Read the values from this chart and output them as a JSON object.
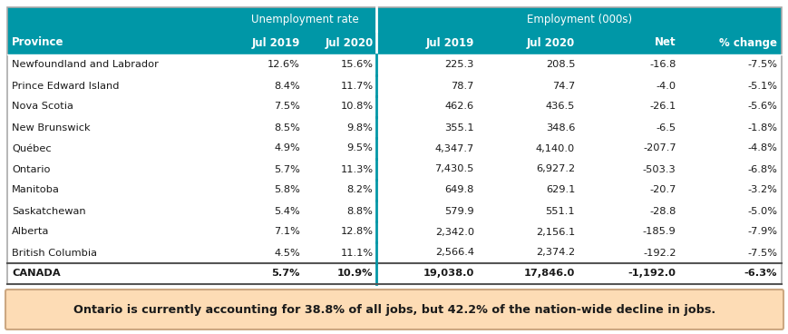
{
  "header_bg": "#0097A7",
  "header_text_color": "#FFFFFF",
  "header_row2": [
    "Province",
    "Jul 2019",
    "Jul 2020",
    "Jul 2019",
    "Jul 2020",
    "Net",
    "% change"
  ],
  "rows": [
    [
      "Newfoundland and Labrador",
      "12.6%",
      "15.6%",
      "225.3",
      "208.5",
      "-16.8",
      "-7.5%"
    ],
    [
      "Prince Edward Island",
      "8.4%",
      "11.7%",
      "78.7",
      "74.7",
      "-4.0",
      "-5.1%"
    ],
    [
      "Nova Scotia",
      "7.5%",
      "10.8%",
      "462.6",
      "436.5",
      "-26.1",
      "-5.6%"
    ],
    [
      "New Brunswick",
      "8.5%",
      "9.8%",
      "355.1",
      "348.6",
      "-6.5",
      "-1.8%"
    ],
    [
      "Québec",
      "4.9%",
      "9.5%",
      "4,347.7",
      "4,140.0",
      "-207.7",
      "-4.8%"
    ],
    [
      "Ontario",
      "5.7%",
      "11.3%",
      "7,430.5",
      "6,927.2",
      "-503.3",
      "-6.8%"
    ],
    [
      "Manitoba",
      "5.8%",
      "8.2%",
      "649.8",
      "629.1",
      "-20.7",
      "-3.2%"
    ],
    [
      "Saskatchewan",
      "5.4%",
      "8.8%",
      "579.9",
      "551.1",
      "-28.8",
      "-5.0%"
    ],
    [
      "Alberta",
      "7.1%",
      "12.8%",
      "2,342.0",
      "2,156.1",
      "-185.9",
      "-7.9%"
    ],
    [
      "British Columbia",
      "4.5%",
      "11.1%",
      "2,566.4",
      "2,374.2",
      "-192.2",
      "-7.5%"
    ]
  ],
  "totals_row": [
    "CANADA",
    "5.7%",
    "10.9%",
    "19,038.0",
    "17,846.0",
    "-1,192.0",
    "-6.3%"
  ],
  "note_text": "Ontario is currently accounting for 38.8% of all jobs, but 42.2% of the nation-wide decline in jobs.",
  "note_bg": "#FDDCB5",
  "note_border": "#CCA882",
  "bg_color": "#FFFFFF",
  "col_aligns": [
    "left",
    "right",
    "right",
    "right",
    "right",
    "right",
    "right"
  ],
  "unemp_label": "Unemployment rate",
  "emp_label": "Employment (000s)",
  "header_fontsize": 8.5,
  "data_fontsize": 8.2,
  "note_fontsize": 9.2
}
